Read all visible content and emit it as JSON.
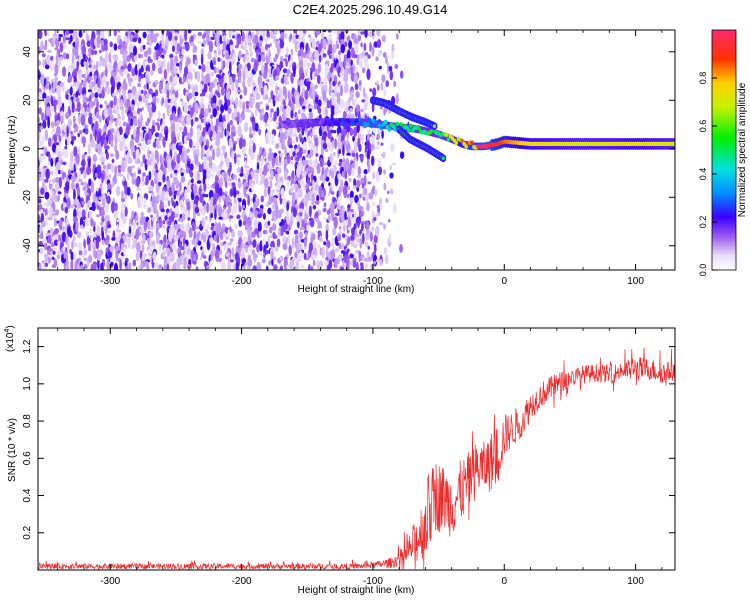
{
  "title": "C2E4.2025.296.10.49.G14",
  "colors": {
    "snr_line": "#ee2a2a",
    "frame": "#000000",
    "background": "#ffffff"
  },
  "chart_data": [
    {
      "type": "heatmap",
      "name": "spectrogram",
      "title": "C2E4.2025.296.10.49.G14",
      "xlabel": "Height of straight line (km)",
      "ylabel": "Frequency (Hz)",
      "xlim": [
        -355,
        130
      ],
      "ylim": [
        -50,
        49
      ],
      "x_ticks": [
        -300,
        -200,
        -100,
        0,
        100
      ],
      "x_tick_labels": [
        "-300",
        "-200",
        "-100",
        "0",
        "100"
      ],
      "y_ticks": [
        -40,
        -20,
        0,
        20,
        40
      ],
      "y_tick_labels": [
        "-40",
        "-20",
        "0",
        "20",
        "40"
      ],
      "colorbar": {
        "label": "Normalized spectral amplitude",
        "range": [
          0,
          1
        ],
        "ticks": [
          0.0,
          0.2,
          0.4,
          0.6,
          0.8
        ],
        "tick_labels": [
          "0.0",
          "0.2",
          "0.4",
          "0.6",
          "0.8"
        ]
      },
      "noise_region_x": [
        -355,
        -90
      ],
      "signal_track": {
        "x": [
          -170,
          -140,
          -110,
          -95,
          -80,
          -65,
          -50,
          -40,
          -32,
          -25,
          -15,
          -5,
          0,
          20,
          60,
          100,
          130
        ],
        "freq_hz": [
          10,
          11,
          11,
          10,
          9,
          8,
          6,
          4,
          2,
          1,
          1,
          2,
          3,
          2,
          2,
          2,
          2
        ],
        "amplitude": [
          0.15,
          0.2,
          0.3,
          0.4,
          0.5,
          0.55,
          0.6,
          0.7,
          0.85,
          0.95,
          1.0,
          0.9,
          0.85,
          0.75,
          0.7,
          0.75,
          0.7
        ]
      },
      "upper_branch": {
        "x": [
          -100,
          -92,
          -85,
          -78,
          -70,
          -60,
          -52
        ],
        "freq_hz": [
          20,
          19,
          17,
          15,
          13,
          11,
          9
        ]
      },
      "lower_branch": {
        "x": [
          -80,
          -72,
          -65,
          -58,
          -52,
          -46
        ],
        "freq_hz": [
          8,
          4,
          2,
          0,
          -2,
          -4
        ]
      }
    },
    {
      "type": "line",
      "name": "snr",
      "xlabel": "Height of straight line (km)",
      "ylabel": "SNR (10 * v/v)",
      "multiplier_label": "(x10",
      "multiplier_exponent": "4",
      "xlim": [
        -355,
        130
      ],
      "ylim": [
        0,
        1.3
      ],
      "x_ticks": [
        -300,
        -200,
        -100,
        0,
        100
      ],
      "x_tick_labels": [
        "-300",
        "-200",
        "-100",
        "0",
        "100"
      ],
      "y_ticks": [
        0.2,
        0.4,
        0.6,
        0.8,
        1.0,
        1.2
      ],
      "y_tick_labels": [
        "0.2",
        "0.4",
        "0.6",
        "0.8",
        "1.0",
        "1.2"
      ],
      "series": [
        {
          "name": "SNR",
          "x": [
            -355,
            -300,
            -250,
            -200,
            -150,
            -110,
            -95,
            -85,
            -75,
            -65,
            -58,
            -52,
            -45,
            -40,
            -35,
            -30,
            -25,
            -20,
            -15,
            -10,
            -5,
            0,
            5,
            10,
            15,
            20,
            25,
            30,
            40,
            50,
            60,
            70,
            80,
            90,
            100,
            110,
            120,
            130
          ],
          "y": [
            0.02,
            0.02,
            0.02,
            0.02,
            0.02,
            0.02,
            0.03,
            0.04,
            0.08,
            0.18,
            0.3,
            0.4,
            0.38,
            0.35,
            0.4,
            0.45,
            0.5,
            0.55,
            0.55,
            0.58,
            0.62,
            0.72,
            0.75,
            0.78,
            0.82,
            0.88,
            0.92,
            0.95,
            1.0,
            1.03,
            1.05,
            1.06,
            1.05,
            1.07,
            1.08,
            1.08,
            1.06,
            1.07
          ],
          "noise_amplitude": [
            0.015,
            0.015,
            0.015,
            0.015,
            0.015,
            0.015,
            0.02,
            0.03,
            0.06,
            0.14,
            0.22,
            0.2,
            0.18,
            0.18,
            0.18,
            0.16,
            0.16,
            0.15,
            0.14,
            0.16,
            0.18,
            0.12,
            0.1,
            0.1,
            0.09,
            0.08,
            0.07,
            0.07,
            0.06,
            0.05,
            0.05,
            0.05,
            0.05,
            0.05,
            0.07,
            0.06,
            0.06,
            0.05
          ]
        }
      ]
    }
  ]
}
